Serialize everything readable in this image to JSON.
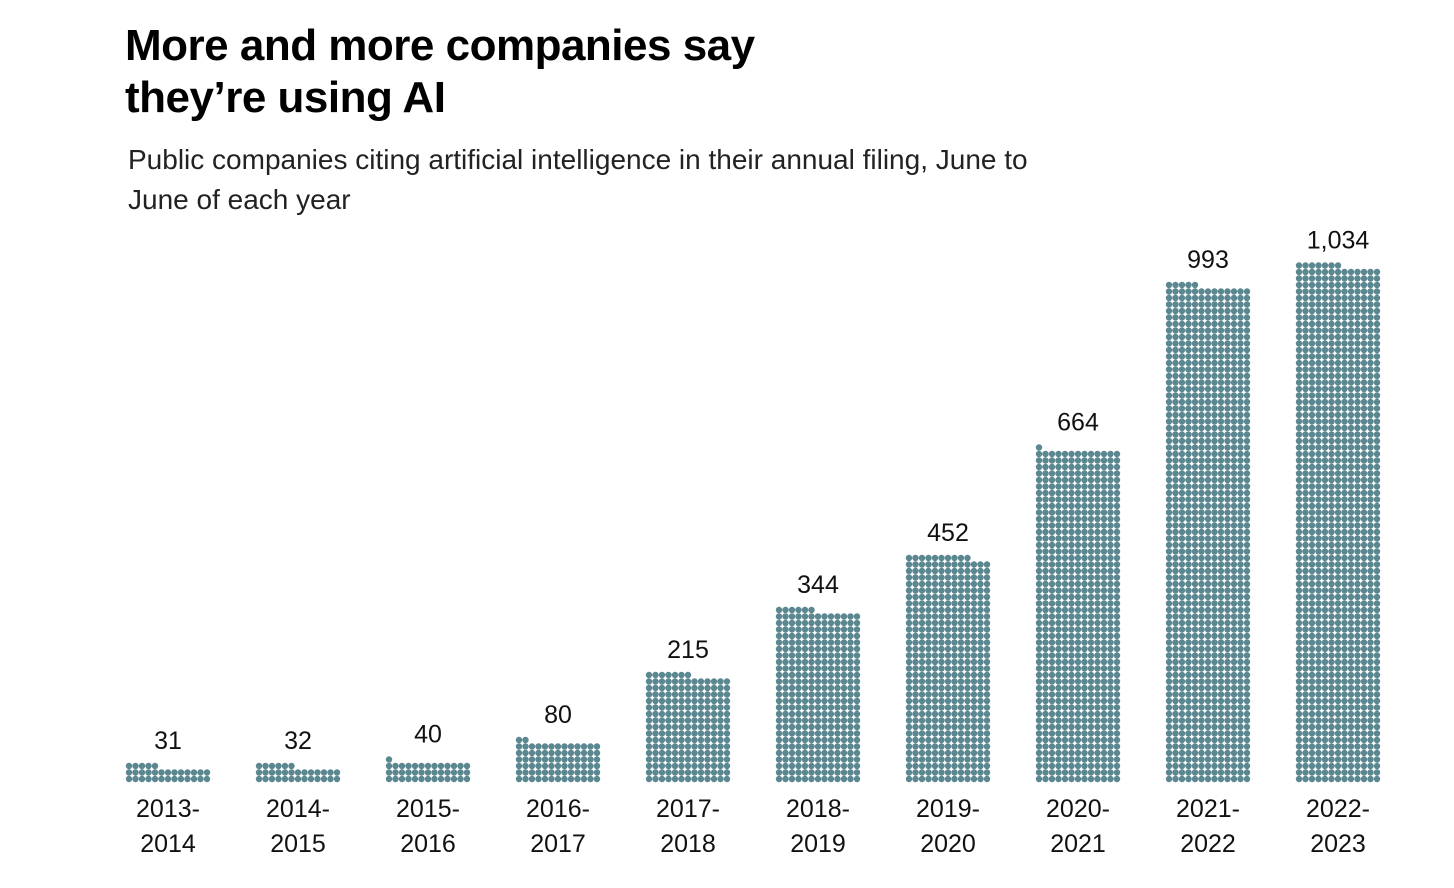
{
  "header": {
    "title": "More and more companies say they’re using AI",
    "subtitle": "Public companies citing artificial intelligence in their annual filing, June to June of each year"
  },
  "colors": {
    "dot": "#5a8790",
    "text": "#111111",
    "background": "#ffffff"
  },
  "chart_data": {
    "type": "bar",
    "style": "dot-matrix (one dot per company)",
    "title": "More and more companies say they’re using AI",
    "subtitle": "Public companies citing artificial intelligence in their annual filing, June to June of each year",
    "categories": [
      "2013-2014",
      "2014-2015",
      "2015-2016",
      "2016-2017",
      "2017-2018",
      "2018-2019",
      "2019-2020",
      "2020-2021",
      "2021-2022",
      "2022-2023"
    ],
    "category_lines": [
      [
        "2013-",
        "2014"
      ],
      [
        "2014-",
        "2015"
      ],
      [
        "2015-",
        "2016"
      ],
      [
        "2016-",
        "2017"
      ],
      [
        "2017-",
        "2018"
      ],
      [
        "2018-",
        "2019"
      ],
      [
        "2019-",
        "2020"
      ],
      [
        "2020-",
        "2021"
      ],
      [
        "2021-",
        "2022"
      ],
      [
        "2022-",
        "2023"
      ]
    ],
    "values": [
      31,
      32,
      40,
      80,
      215,
      344,
      452,
      664,
      993,
      1034
    ],
    "value_labels": [
      "31",
      "32",
      "40",
      "80",
      "215",
      "344",
      "452",
      "664",
      "993",
      "1,034"
    ],
    "xlabel": "",
    "ylabel": "",
    "grid": false,
    "legend": "none"
  }
}
